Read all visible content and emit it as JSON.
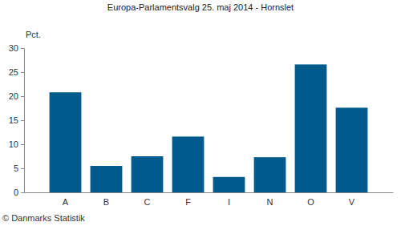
{
  "chart_data": {
    "type": "bar",
    "title": "Europa-Parlamentsvalg 25. maj 2014 - Hornslet",
    "y_label": "Pct.",
    "source": "© Danmarks Statistik",
    "categories": [
      "A",
      "B",
      "C",
      "F",
      "I",
      "N",
      "O",
      "V"
    ],
    "values": [
      20.8,
      5.5,
      7.5,
      11.6,
      3.2,
      7.3,
      26.6,
      17.6
    ],
    "color": "#005a8c",
    "ylim": [
      0,
      30
    ],
    "yticks": [
      0,
      5,
      10,
      15,
      20,
      25,
      30
    ],
    "grid": false
  }
}
